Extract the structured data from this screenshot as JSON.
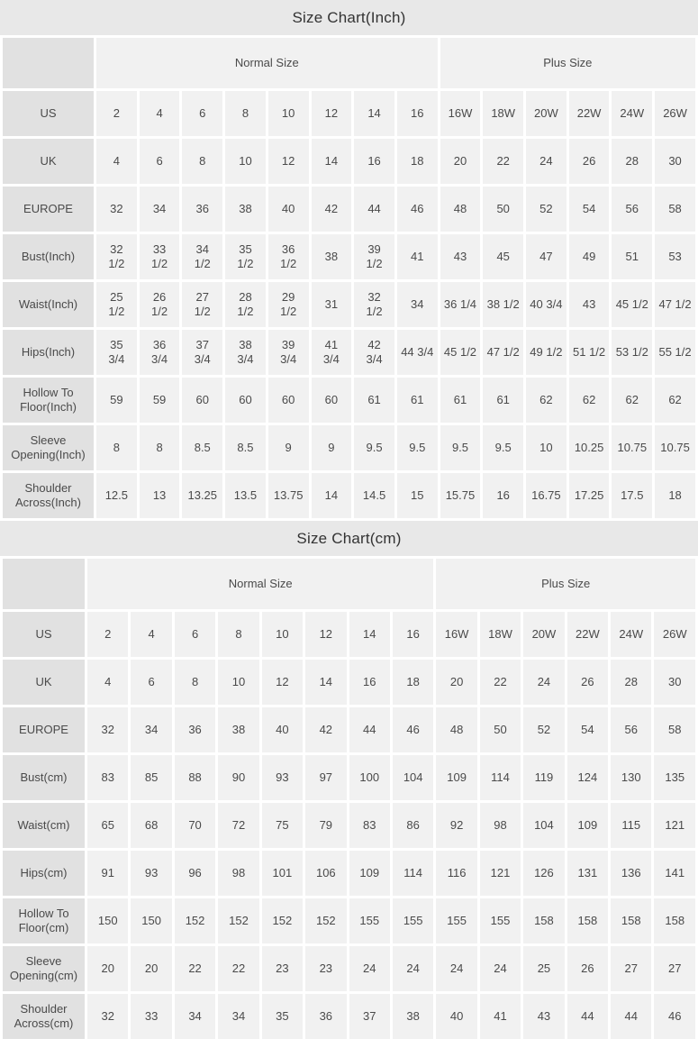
{
  "colors": {
    "title_bar_bg": "#e8e8e8",
    "label_cell_bg": "#e1e1e1",
    "data_cell_bg": "#f1f1f1",
    "text": "#4a4a4a",
    "title_text": "#333333",
    "page_bg": "#ffffff"
  },
  "chart_data": [
    {
      "type": "table",
      "unit": "inch",
      "title": "Size Chart(Inch)",
      "column_groups": [
        {
          "label": "Normal Size",
          "span": 8
        },
        {
          "label": "Plus Size",
          "span": 6
        }
      ],
      "rows": [
        {
          "label": "US",
          "values": [
            "2",
            "4",
            "6",
            "8",
            "10",
            "12",
            "14",
            "16",
            "16W",
            "18W",
            "20W",
            "22W",
            "24W",
            "26W"
          ]
        },
        {
          "label": "UK",
          "values": [
            "4",
            "6",
            "8",
            "10",
            "12",
            "14",
            "16",
            "18",
            "20",
            "22",
            "24",
            "26",
            "28",
            "30"
          ]
        },
        {
          "label": "EUROPE",
          "values": [
            "32",
            "34",
            "36",
            "38",
            "40",
            "42",
            "44",
            "46",
            "48",
            "50",
            "52",
            "54",
            "56",
            "58"
          ]
        },
        {
          "label": "Bust(Inch)",
          "values": [
            "32\n1/2",
            "33\n1/2",
            "34\n1/2",
            "35\n1/2",
            "36\n1/2",
            "38",
            "39\n1/2",
            "41",
            "43",
            "45",
            "47",
            "49",
            "51",
            "53"
          ]
        },
        {
          "label": "Waist(Inch)",
          "values": [
            "25\n1/2",
            "26\n1/2",
            "27\n1/2",
            "28\n1/2",
            "29\n1/2",
            "31",
            "32\n1/2",
            "34",
            "36 1/4",
            "38 1/2",
            "40 3/4",
            "43",
            "45 1/2",
            "47 1/2"
          ]
        },
        {
          "label": "Hips(Inch)",
          "values": [
            "35\n3/4",
            "36\n3/4",
            "37\n3/4",
            "38\n3/4",
            "39\n3/4",
            "41\n3/4",
            "42\n3/4",
            "44 3/4",
            "45 1/2",
            "47 1/2",
            "49 1/2",
            "51 1/2",
            "53 1/2",
            "55 1/2"
          ]
        },
        {
          "label": "Hollow To Floor(Inch)",
          "values": [
            "59",
            "59",
            "60",
            "60",
            "60",
            "60",
            "61",
            "61",
            "61",
            "61",
            "62",
            "62",
            "62",
            "62"
          ]
        },
        {
          "label": "Sleeve Opening(Inch)",
          "values": [
            "8",
            "8",
            "8.5",
            "8.5",
            "9",
            "9",
            "9.5",
            "9.5",
            "9.5",
            "9.5",
            "10",
            "10.25",
            "10.75",
            "10.75"
          ]
        },
        {
          "label": "Shoulder Across(Inch)",
          "values": [
            "12.5",
            "13",
            "13.25",
            "13.5",
            "13.75",
            "14",
            "14.5",
            "15",
            "15.75",
            "16",
            "16.75",
            "17.25",
            "17.5",
            "18"
          ]
        }
      ]
    },
    {
      "type": "table",
      "unit": "cm",
      "title": "Size Chart(cm)",
      "column_groups": [
        {
          "label": "Normal Size",
          "span": 8
        },
        {
          "label": "Plus Size",
          "span": 6
        }
      ],
      "rows": [
        {
          "label": "US",
          "values": [
            "2",
            "4",
            "6",
            "8",
            "10",
            "12",
            "14",
            "16",
            "16W",
            "18W",
            "20W",
            "22W",
            "24W",
            "26W"
          ]
        },
        {
          "label": "UK",
          "values": [
            "4",
            "6",
            "8",
            "10",
            "12",
            "14",
            "16",
            "18",
            "20",
            "22",
            "24",
            "26",
            "28",
            "30"
          ]
        },
        {
          "label": "EUROPE",
          "values": [
            "32",
            "34",
            "36",
            "38",
            "40",
            "42",
            "44",
            "46",
            "48",
            "50",
            "52",
            "54",
            "56",
            "58"
          ]
        },
        {
          "label": "Bust(cm)",
          "values": [
            "83",
            "85",
            "88",
            "90",
            "93",
            "97",
            "100",
            "104",
            "109",
            "114",
            "119",
            "124",
            "130",
            "135"
          ]
        },
        {
          "label": "Waist(cm)",
          "values": [
            "65",
            "68",
            "70",
            "72",
            "75",
            "79",
            "83",
            "86",
            "92",
            "98",
            "104",
            "109",
            "115",
            "121"
          ]
        },
        {
          "label": "Hips(cm)",
          "values": [
            "91",
            "93",
            "96",
            "98",
            "101",
            "106",
            "109",
            "114",
            "116",
            "121",
            "126",
            "131",
            "136",
            "141"
          ]
        },
        {
          "label": "Hollow To Floor(cm)",
          "values": [
            "150",
            "150",
            "152",
            "152",
            "152",
            "152",
            "155",
            "155",
            "155",
            "155",
            "158",
            "158",
            "158",
            "158"
          ]
        },
        {
          "label": "Sleeve Opening(cm)",
          "values": [
            "20",
            "20",
            "22",
            "22",
            "23",
            "23",
            "24",
            "24",
            "24",
            "24",
            "25",
            "26",
            "27",
            "27"
          ]
        },
        {
          "label": "Shoulder Across(cm)",
          "values": [
            "32",
            "33",
            "34",
            "34",
            "35",
            "36",
            "37",
            "38",
            "40",
            "41",
            "43",
            "44",
            "44",
            "46"
          ]
        }
      ]
    }
  ]
}
